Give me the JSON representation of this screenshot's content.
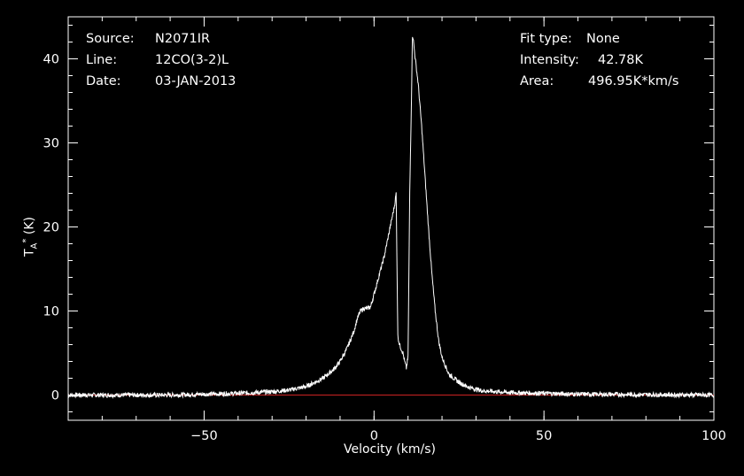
{
  "header": {
    "source_label": "Source:",
    "source_value": "N2071IR",
    "line_label": "Line:",
    "line_value": "12CO(3-2)L",
    "date_label": "Date:",
    "date_value": "03-JAN-2013",
    "fit_label": "Fit type:",
    "fit_value": "None",
    "intensity_label": "Intensity:",
    "intensity_value": "42.78K",
    "area_label": "Area:",
    "area_value": "496.95K*km/s"
  },
  "chart_data": {
    "type": "line",
    "xlabel": "Velocity (km/s)",
    "ylabel_main": "T",
    "ylabel_sub": "A",
    "ylabel_sup": "*",
    "ylabel_unit": "(K)",
    "xlim": [
      -90,
      100
    ],
    "ylim": [
      -3,
      45
    ],
    "xticks": [
      -50,
      0,
      50,
      100
    ],
    "xtick_labels": [
      "−50",
      "0",
      "50",
      "100"
    ],
    "yticks": [
      0,
      10,
      20,
      30,
      40
    ],
    "ytick_labels": [
      "0",
      "10",
      "20",
      "30",
      "40"
    ],
    "grid": false,
    "colors": {
      "background": "#000000",
      "spectrum": "#ffffff",
      "baseline": "#cc2222",
      "axes": "#ffffff"
    },
    "baseline_value": 0,
    "series": [
      {
        "x": [
          -90,
          -60,
          -40,
          -30,
          -25,
          -20,
          -15,
          -12,
          -10,
          -8,
          -6,
          -5,
          -4,
          -3,
          -2,
          -1,
          0,
          1,
          2,
          3,
          4,
          5,
          6,
          6.5,
          7,
          7.5,
          8,
          8.5,
          9,
          9.5,
          10,
          10.5,
          11,
          11.3,
          11.5,
          12,
          13,
          14,
          15,
          16,
          17,
          18,
          19,
          20,
          22,
          25,
          28,
          32,
          40,
          60,
          100
        ],
        "y": [
          0,
          0,
          0.2,
          0.4,
          0.6,
          1.0,
          2.0,
          3.0,
          4.0,
          5.5,
          7.5,
          9.0,
          10.0,
          10.3,
          10.3,
          10.5,
          12.0,
          13.5,
          15.0,
          16.5,
          18.5,
          20.5,
          22.5,
          24.0,
          7.0,
          6.0,
          5.5,
          5.0,
          4.0,
          3.2,
          4.5,
          24.0,
          35.0,
          42.8,
          42.5,
          40.5,
          37.0,
          32.0,
          26.0,
          20.0,
          14.5,
          10.0,
          6.5,
          4.5,
          2.5,
          1.5,
          0.9,
          0.5,
          0.3,
          0.1,
          0
        ]
      }
    ]
  }
}
